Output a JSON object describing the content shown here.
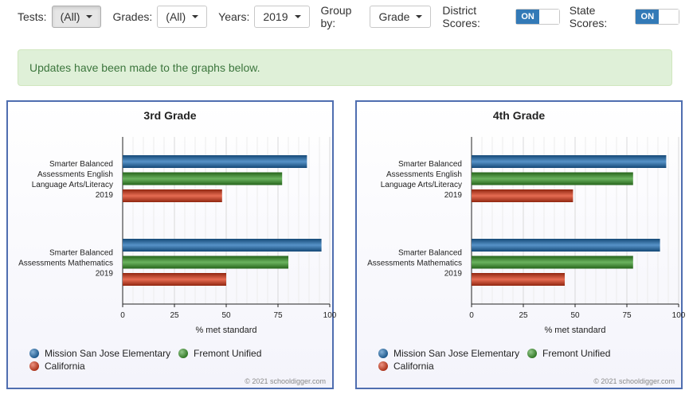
{
  "filters": {
    "tests": {
      "label": "Tests:",
      "value": "(All)"
    },
    "grades": {
      "label": "Grades:",
      "value": "(All)"
    },
    "years": {
      "label": "Years:",
      "value": "2019"
    },
    "group_by": {
      "label": "Group by:",
      "value": "Grade"
    },
    "district_scores": {
      "label": "District Scores:",
      "state": "ON"
    },
    "state_scores": {
      "label": "State Scores:",
      "state": "ON"
    }
  },
  "alert": {
    "message": "Updates have been made to the graphs below."
  },
  "colors": {
    "mission": "#1f6fb5",
    "fremont": "#3a9a2a",
    "california": "#dd3b19",
    "panel_border": "#4f6eb0",
    "toggle_on": "#337ab7"
  },
  "chart_data": [
    {
      "type": "bar",
      "orientation": "horizontal",
      "title": "3rd Grade",
      "categories": [
        [
          "Smarter Balanced",
          "Assessments English",
          "Language Arts/Literacy",
          "2019"
        ],
        [
          "Smarter Balanced",
          "Assessments Mathematics",
          "2019"
        ]
      ],
      "series": [
        {
          "name": "Mission San Jose Elementary",
          "color": "#1f6fb5",
          "values": [
            89,
            96
          ]
        },
        {
          "name": "Fremont Unified",
          "color": "#3a9a2a",
          "values": [
            77,
            80
          ]
        },
        {
          "name": "California",
          "color": "#dd3b19",
          "values": [
            48,
            50
          ]
        }
      ],
      "xlabel": "% met standard",
      "xlim": [
        0,
        100
      ],
      "xticks": [
        0,
        25,
        50,
        75,
        100
      ],
      "grid": true,
      "legend": "bottom",
      "credit": "© 2021 schooldigger.com"
    },
    {
      "type": "bar",
      "orientation": "horizontal",
      "title": "4th Grade",
      "categories": [
        [
          "Smarter Balanced",
          "Assessments English",
          "Language Arts/Literacy",
          "2019"
        ],
        [
          "Smarter Balanced",
          "Assessments Mathematics",
          "2019"
        ]
      ],
      "series": [
        {
          "name": "Mission San Jose Elementary",
          "color": "#1f6fb5",
          "values": [
            94,
            91
          ]
        },
        {
          "name": "Fremont Unified",
          "color": "#3a9a2a",
          "values": [
            78,
            78
          ]
        },
        {
          "name": "California",
          "color": "#dd3b19",
          "values": [
            49,
            45
          ]
        }
      ],
      "xlabel": "% met standard",
      "xlim": [
        0,
        100
      ],
      "xticks": [
        0,
        25,
        50,
        75,
        100
      ],
      "grid": true,
      "legend": "bottom",
      "credit": "© 2021 schooldigger.com"
    }
  ]
}
